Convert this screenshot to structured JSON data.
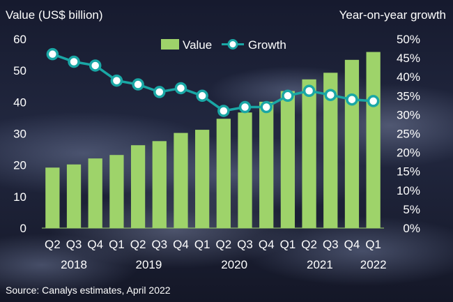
{
  "chart_data": {
    "type": "bar+line",
    "y_left_label": "Value (US$ billion)",
    "y_right_label": "Year-on-year growth",
    "ylim_left": [
      0,
      60
    ],
    "yticks_left": [
      "0",
      "10",
      "20",
      "30",
      "40",
      "50",
      "60"
    ],
    "ylim_right": [
      0,
      50
    ],
    "yticks_right": [
      "0%",
      "5%",
      "10%",
      "15%",
      "20%",
      "25%",
      "30%",
      "35%",
      "40%",
      "45%",
      "50%"
    ],
    "categories": [
      "Q2",
      "Q3",
      "Q4",
      "Q1",
      "Q2",
      "Q3",
      "Q4",
      "Q1",
      "Q2",
      "Q3",
      "Q4",
      "Q1",
      "Q2",
      "Q3",
      "Q4",
      "Q1"
    ],
    "year_labels": [
      {
        "label": "2018",
        "start": 0,
        "end": 2
      },
      {
        "label": "2019",
        "start": 3,
        "end": 6
      },
      {
        "label": "2020",
        "start": 7,
        "end": 10
      },
      {
        "label": "2021",
        "start": 11,
        "end": 14
      },
      {
        "label": "2022",
        "start": 15,
        "end": 15
      }
    ],
    "series": [
      {
        "name": "Value",
        "type": "bar",
        "axis": "left",
        "color": "#9ed36a",
        "values": [
          19.2,
          20.2,
          22.1,
          23.2,
          26.3,
          27.6,
          30.2,
          31.2,
          34.7,
          36.7,
          40.1,
          43.5,
          47.2,
          49.3,
          53.4,
          55.9
        ]
      },
      {
        "name": "Growth",
        "type": "line",
        "axis": "right",
        "color": "#1aa7a5",
        "values": [
          46,
          44,
          43,
          39,
          38,
          36,
          37,
          35,
          31,
          32,
          32,
          35,
          36.3,
          35.2,
          34,
          33.6
        ]
      }
    ],
    "legend": "top-center"
  },
  "footer": {
    "source": "Source:  Canalys estimates, April 2022"
  }
}
